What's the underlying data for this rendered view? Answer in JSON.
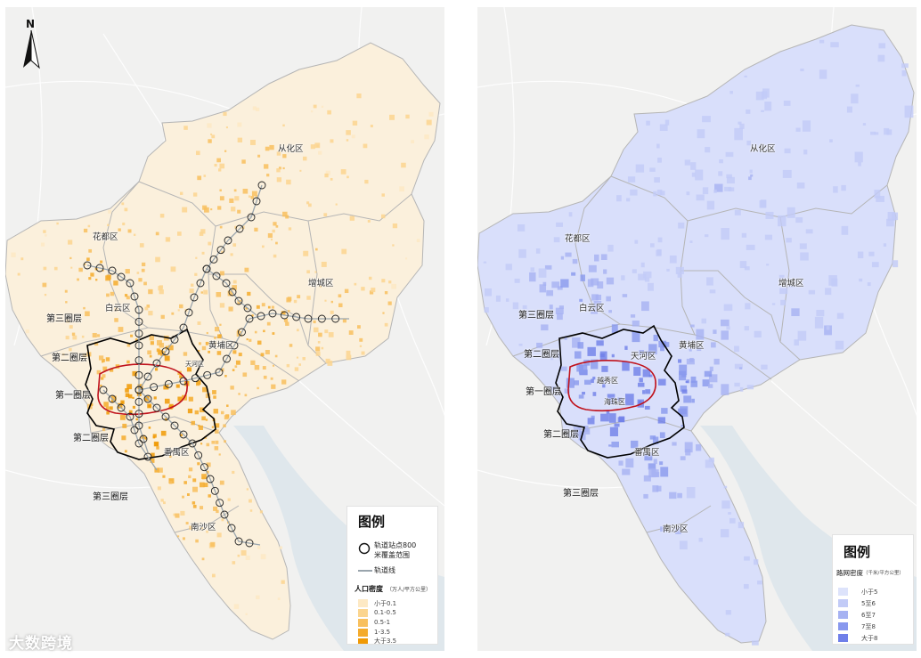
{
  "colors": {
    "orange": [
      "#fde9c4",
      "#fbd58f",
      "#f8c05e",
      "#f4ab2c",
      "#f09a05"
    ],
    "blue": [
      "#dde3fb",
      "#c2cbf7",
      "#a6b2f2",
      "#8898ee",
      "#6f7fe9"
    ],
    "district_boundary": "#b5b5b5",
    "inner_ring": "#c0121c",
    "outer_ring": "#000000"
  },
  "left_map": {
    "north_label": "N",
    "districts": [
      "花都区",
      "从化区",
      "增城区",
      "白云区",
      "黄埔区",
      "番禺区",
      "南沙区"
    ],
    "small_labels": [
      "天河区"
    ],
    "rings": [
      "第三圈层",
      "第二圈层",
      "第一圈层",
      "第二圈层",
      "第三圈层"
    ],
    "legend": {
      "title": "图例",
      "station_label_1": "轨道站点800",
      "station_label_2": "米覆盖范围",
      "line_label": "轨道线",
      "density_title": "人口密度",
      "density_unit": "（万人/平方公里）",
      "classes": [
        "小于0.1",
        "0.1-0.5",
        "0.5-1",
        "1-3.5",
        "大于3.5"
      ]
    }
  },
  "right_map": {
    "districts": [
      "花都区",
      "从化区",
      "增城区",
      "白云区",
      "黄埔区",
      "番禺区",
      "南沙区",
      "天河区",
      "越秀区",
      "海珠区"
    ],
    "rings": [
      "第三圈层",
      "第二圈层",
      "第一圈层",
      "第二圈层",
      "第三圈层"
    ],
    "legend": {
      "title": "图例",
      "density_title": "路网密度",
      "density_unit": "（千米/平方公里）",
      "classes": [
        "小于5",
        "5至6",
        "6至7",
        "7至8",
        "大于8"
      ]
    }
  },
  "watermark": "大数跨境"
}
